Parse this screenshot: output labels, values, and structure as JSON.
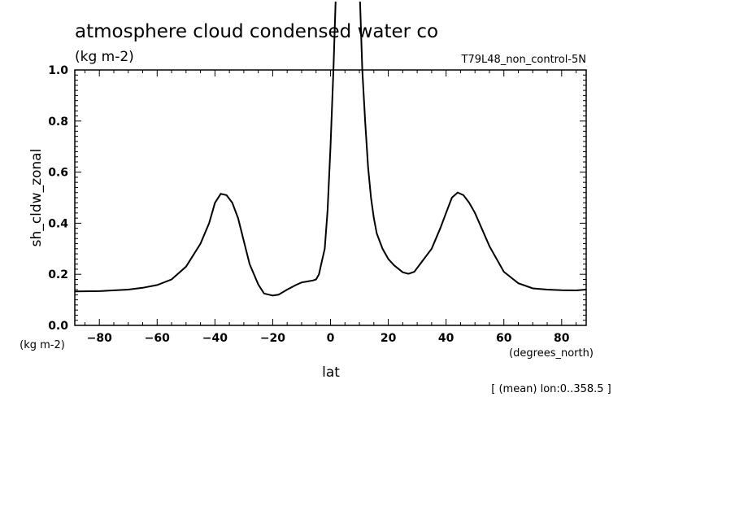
{
  "chart_data": {
    "type": "line",
    "title": "atmosphere cloud condensed water co",
    "units_label": "(kg m-2)",
    "run_label": "T79L48_non_control-5N",
    "ylabel": "sh_cldw_zonal",
    "yunits_label": "(kg m-2)",
    "xlabel": "lat",
    "xunits_label": "(degrees_north)",
    "footnote": "[ (mean) lon:0..358.5 ]",
    "xlim": [
      -88.5,
      88.5
    ],
    "ylim": [
      0.0,
      1.0
    ],
    "x_ticks": [
      -80,
      -60,
      -40,
      -20,
      0,
      20,
      40,
      60,
      80
    ],
    "y_ticks": [
      "0.0",
      "0.2",
      "0.4",
      "0.6",
      "0.8",
      "1.0"
    ],
    "grid": false,
    "series": [
      {
        "name": "",
        "x": [
          -88.5,
          -80,
          -70,
          -65,
          -60,
          -55,
          -50,
          -45,
          -42,
          -40,
          -38,
          -36,
          -34,
          -32,
          -30,
          -28,
          -25,
          -23,
          -20,
          -18,
          -15,
          -12,
          -10,
          -8,
          -6,
          -5,
          -4,
          -3,
          -2,
          -1,
          0,
          1,
          2,
          10,
          11,
          12,
          13,
          14,
          15,
          16,
          18,
          20,
          22,
          25,
          27,
          29,
          31,
          35,
          38,
          40,
          42,
          44,
          46,
          48,
          50,
          55,
          60,
          65,
          70,
          75,
          80,
          85,
          88.5
        ],
        "y": [
          0.133,
          0.134,
          0.14,
          0.147,
          0.158,
          0.18,
          0.23,
          0.32,
          0.4,
          0.48,
          0.515,
          0.51,
          0.48,
          0.42,
          0.33,
          0.24,
          0.16,
          0.125,
          0.117,
          0.12,
          0.14,
          0.158,
          0.168,
          0.172,
          0.176,
          0.18,
          0.2,
          0.25,
          0.3,
          0.45,
          0.7,
          1.0,
          1.35,
          1.35,
          1.0,
          0.8,
          0.62,
          0.5,
          0.42,
          0.36,
          0.3,
          0.26,
          0.235,
          0.208,
          0.202,
          0.21,
          0.24,
          0.3,
          0.38,
          0.44,
          0.5,
          0.52,
          0.51,
          0.48,
          0.44,
          0.31,
          0.21,
          0.165,
          0.145,
          0.14,
          0.138,
          0.137,
          0.14
        ]
      }
    ]
  }
}
